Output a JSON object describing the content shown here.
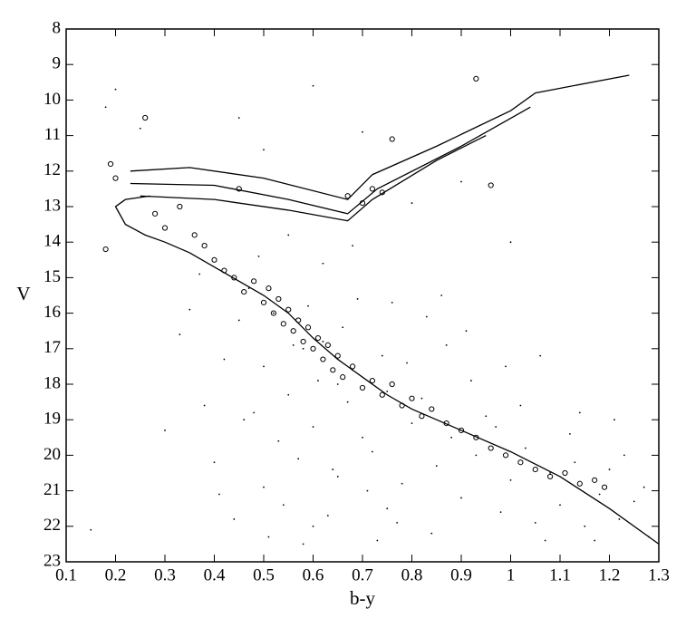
{
  "chart_data": {
    "type": "scatter",
    "x_label": "b-y",
    "y_label": "V",
    "xlim": [
      0.1,
      1.3
    ],
    "ylim": [
      8,
      23
    ],
    "y_inverted": true,
    "xticks": [
      0.1,
      0.2,
      0.3,
      0.4,
      0.5,
      0.6,
      0.7,
      0.8,
      0.9,
      1,
      1.1,
      1.2,
      1.3
    ],
    "yticks": [
      8,
      9,
      10,
      11,
      12,
      13,
      14,
      15,
      16,
      17,
      18,
      19,
      20,
      21,
      22,
      23
    ],
    "series": [
      {
        "marker": "dot",
        "color": "#000000",
        "x": [
          0.45,
          0.5,
          0.52,
          0.55,
          0.58,
          0.6,
          0.62,
          0.65,
          0.68,
          0.7,
          0.48,
          0.53,
          0.57,
          0.61,
          0.64,
          0.67,
          0.72,
          0.75,
          0.78,
          0.8,
          0.42,
          0.46,
          0.5,
          0.54,
          0.59,
          0.63,
          0.66,
          0.71,
          0.74,
          0.77,
          0.82,
          0.85,
          0.88,
          0.9,
          0.93,
          0.95,
          0.98,
          1.0,
          1.03,
          1.05,
          1.08,
          1.1,
          1.13,
          1.15,
          1.18,
          1.2,
          1.22,
          1.25,
          1.28,
          0.35,
          0.38,
          0.4,
          0.44,
          0.47,
          0.51,
          0.56,
          0.6,
          0.65,
          0.69,
          0.73,
          0.79,
          0.84,
          0.87,
          0.92,
          0.97,
          1.02,
          1.07,
          1.12,
          1.17,
          1.23,
          0.3,
          0.33,
          0.37,
          0.41,
          0.49,
          0.55,
          0.62,
          0.68,
          0.76,
          0.83,
          0.91,
          0.99,
          1.06,
          1.14,
          1.21,
          1.27,
          0.2,
          0.25,
          0.15,
          0.18,
          0.6,
          0.8,
          1.0,
          0.7,
          0.9,
          0.5,
          0.45,
          0.58,
          0.75,
          0.86
        ],
        "values": [
          16.2,
          17.5,
          16.0,
          18.3,
          17.0,
          19.2,
          16.8,
          18.0,
          17.6,
          19.5,
          18.8,
          19.6,
          20.1,
          17.9,
          20.4,
          18.5,
          19.9,
          18.2,
          20.8,
          19.1,
          17.3,
          19.0,
          20.9,
          21.4,
          15.8,
          21.7,
          16.4,
          21.0,
          17.2,
          21.9,
          18.4,
          20.3,
          19.5,
          21.2,
          20.0,
          18.9,
          21.6,
          20.7,
          19.8,
          21.9,
          20.5,
          21.4,
          20.2,
          22.0,
          21.1,
          20.4,
          21.8,
          21.3,
          22.3,
          15.9,
          18.6,
          20.2,
          21.8,
          15.3,
          22.3,
          16.9,
          22.0,
          20.6,
          15.6,
          22.4,
          17.4,
          22.2,
          16.9,
          17.9,
          19.2,
          18.6,
          22.4,
          19.4,
          22.4,
          20.0,
          19.3,
          16.6,
          14.9,
          21.1,
          14.4,
          13.8,
          14.6,
          14.1,
          15.7,
          16.1,
          16.5,
          17.5,
          17.2,
          18.8,
          19.0,
          20.9,
          9.7,
          10.8,
          22.1,
          10.2,
          9.6,
          12.9,
          14.0,
          10.9,
          12.3,
          11.4,
          10.5,
          22.5,
          21.5,
          15.5
        ]
      },
      {
        "marker": "circle",
        "color": "#000000",
        "x": [
          0.19,
          0.2,
          0.18,
          0.26,
          0.28,
          0.3,
          0.33,
          0.36,
          0.38,
          0.4,
          0.42,
          0.44,
          0.46,
          0.48,
          0.5,
          0.51,
          0.52,
          0.53,
          0.54,
          0.55,
          0.56,
          0.57,
          0.58,
          0.59,
          0.6,
          0.61,
          0.62,
          0.63,
          0.64,
          0.65,
          0.66,
          0.68,
          0.7,
          0.72,
          0.74,
          0.76,
          0.78,
          0.8,
          0.82,
          0.84,
          0.87,
          0.9,
          0.93,
          0.96,
          0.99,
          1.02,
          1.05,
          1.08,
          1.11,
          1.14,
          1.17,
          1.19,
          0.93,
          0.67,
          0.7,
          0.72,
          0.74,
          0.76,
          0.45,
          0.96
        ],
        "values": [
          11.8,
          12.2,
          14.2,
          10.5,
          13.2,
          13.6,
          13.0,
          13.8,
          14.1,
          14.5,
          14.8,
          15.0,
          15.4,
          15.1,
          15.7,
          15.3,
          16.0,
          15.6,
          16.3,
          15.9,
          16.5,
          16.2,
          16.8,
          16.4,
          17.0,
          16.7,
          17.3,
          16.9,
          17.6,
          17.2,
          17.8,
          17.5,
          18.1,
          17.9,
          18.3,
          18.0,
          18.6,
          18.4,
          18.9,
          18.7,
          19.1,
          19.3,
          19.5,
          19.8,
          20.0,
          20.2,
          20.4,
          20.6,
          20.5,
          20.8,
          20.7,
          20.9,
          9.4,
          12.7,
          12.9,
          12.5,
          12.6,
          11.1,
          12.5,
          12.4
        ]
      },
      {
        "marker": "line",
        "color": "#000000",
        "x": [
          0.27,
          0.22,
          0.2,
          0.22,
          0.26,
          0.3,
          0.35,
          0.4,
          0.45,
          0.5,
          0.55,
          0.6,
          0.65,
          0.7,
          0.75,
          0.8,
          0.9,
          1.0,
          1.1,
          1.2,
          1.3
        ],
        "values": [
          12.7,
          12.8,
          13.0,
          13.5,
          13.8,
          14.0,
          14.3,
          14.7,
          15.1,
          15.5,
          16.0,
          16.7,
          17.3,
          17.8,
          18.3,
          18.7,
          19.3,
          19.9,
          20.6,
          21.5,
          22.5
        ]
      },
      {
        "marker": "line",
        "color": "#000000",
        "x": [
          0.23,
          0.35,
          0.5,
          0.67,
          0.72,
          0.85,
          1.0,
          1.05,
          1.24
        ],
        "values": [
          12.0,
          11.9,
          12.2,
          12.8,
          12.1,
          11.3,
          10.3,
          9.8,
          9.3
        ]
      },
      {
        "marker": "line",
        "color": "#000000",
        "x": [
          0.23,
          0.4,
          0.55,
          0.67,
          0.73,
          0.9,
          1.04
        ],
        "values": [
          12.35,
          12.4,
          12.8,
          13.2,
          12.5,
          11.3,
          10.2
        ]
      },
      {
        "marker": "line",
        "color": "#000000",
        "x": [
          0.25,
          0.4,
          0.55,
          0.67,
          0.72,
          0.85,
          0.95
        ],
        "values": [
          12.7,
          12.8,
          13.1,
          13.4,
          12.8,
          11.7,
          11.0
        ]
      }
    ]
  }
}
